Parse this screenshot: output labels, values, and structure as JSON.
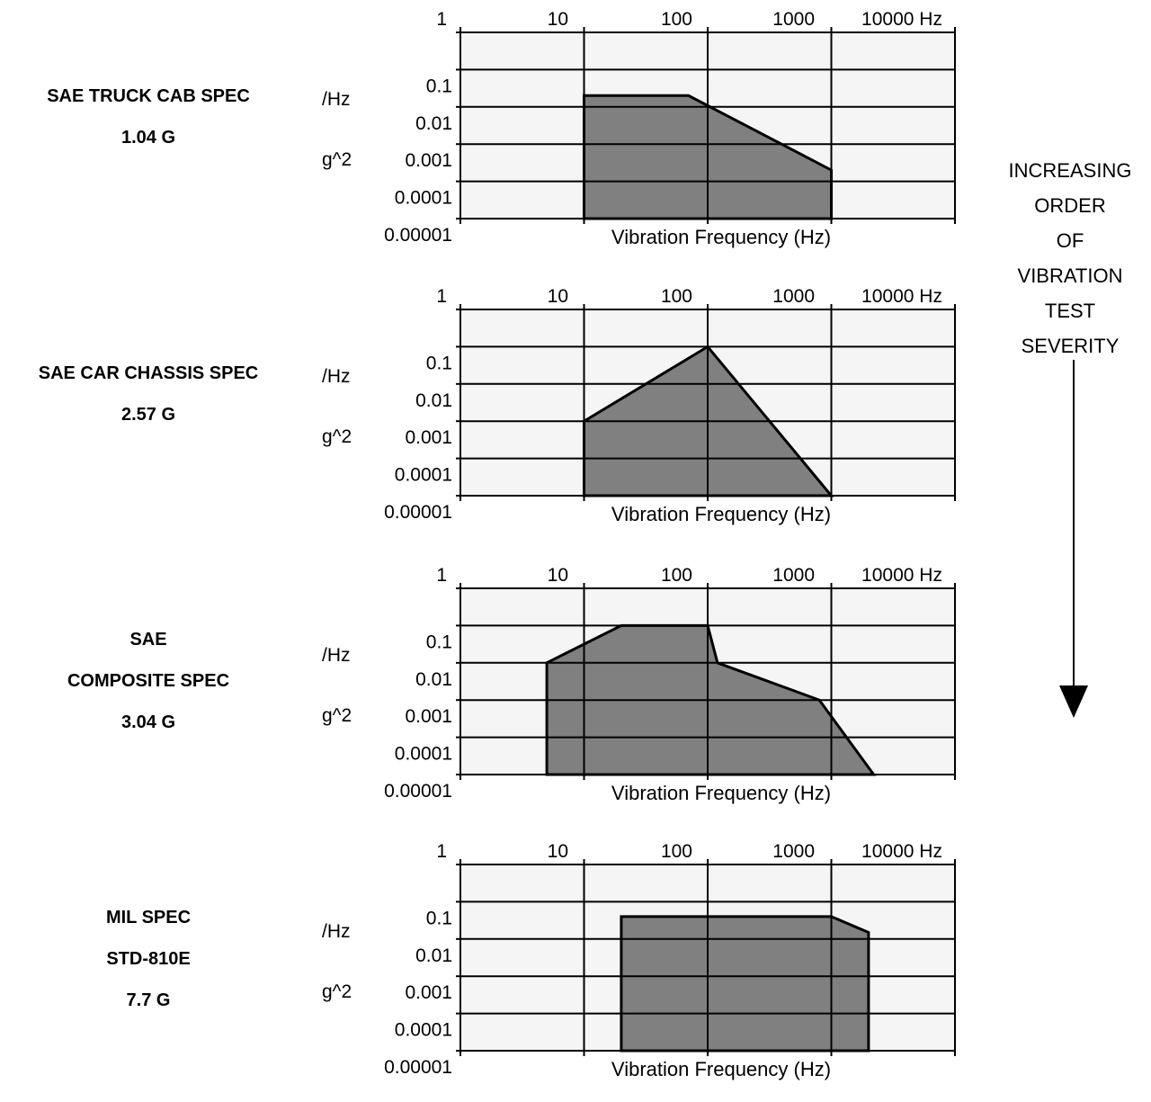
{
  "severity_note": {
    "lines": [
      "INCREASING",
      "ORDER",
      "OF",
      "VIBRATION",
      "TEST",
      "SEVERITY"
    ]
  },
  "chart_data": [
    {
      "type": "area",
      "title_lines": [
        "SAE TRUCK CAB SPEC",
        "1.04 G"
      ],
      "xlabel": "Vibration Frequency (Hz)",
      "ylabel_lines": [
        "/Hz",
        "g^2"
      ],
      "x_scale": "log",
      "y_scale": "log",
      "x_ticks": [
        "1",
        "10",
        "100",
        "1000",
        "10000 Hz"
      ],
      "y_ticks": [
        "0.1",
        "0.01",
        "0.001",
        "0.0001",
        "0.00001"
      ],
      "xlim": [
        1,
        10000
      ],
      "ylim": [
        1e-05,
        1
      ],
      "points": [
        [
          10,
          1e-05
        ],
        [
          10,
          0.02
        ],
        [
          70,
          0.02
        ],
        [
          1000,
          0.0002
        ],
        [
          1000,
          1e-05
        ]
      ]
    },
    {
      "type": "area",
      "title_lines": [
        "SAE CAR CHASSIS SPEC",
        "2.57 G"
      ],
      "xlabel": "Vibration Frequency (Hz)",
      "ylabel_lines": [
        "/Hz",
        "g^2"
      ],
      "x_scale": "log",
      "y_scale": "log",
      "x_ticks": [
        "1",
        "10",
        "100",
        "1000",
        "10000 Hz"
      ],
      "y_ticks": [
        "0.1",
        "0.01",
        "0.001",
        "0.0001",
        "0.00001"
      ],
      "xlim": [
        1,
        10000
      ],
      "ylim": [
        1e-05,
        1
      ],
      "points": [
        [
          10,
          1e-05
        ],
        [
          10,
          0.001
        ],
        [
          100,
          0.1
        ],
        [
          1000,
          1e-05
        ]
      ]
    },
    {
      "type": "area",
      "title_lines": [
        "SAE",
        "COMPOSITE SPEC",
        "3.04 G"
      ],
      "xlabel": "Vibration Frequency (Hz)",
      "ylabel_lines": [
        "/Hz",
        "g^2"
      ],
      "x_scale": "log",
      "y_scale": "log",
      "x_ticks": [
        "1",
        "10",
        "100",
        "1000",
        "10000 Hz"
      ],
      "y_ticks": [
        "0.1",
        "0.01",
        "0.001",
        "0.0001",
        "0.00001"
      ],
      "xlim": [
        1,
        10000
      ],
      "ylim": [
        1e-05,
        1
      ],
      "points": [
        [
          5,
          1e-05
        ],
        [
          5,
          0.01
        ],
        [
          20,
          0.1
        ],
        [
          100,
          0.1
        ],
        [
          120,
          0.01
        ],
        [
          800,
          0.001
        ],
        [
          2200,
          1e-05
        ]
      ]
    },
    {
      "type": "area",
      "title_lines": [
        "MIL SPEC",
        "STD-810E",
        "7.7 G"
      ],
      "xlabel": "Vibration Frequency (Hz)",
      "ylabel_lines": [
        "/Hz",
        "g^2"
      ],
      "x_scale": "log",
      "y_scale": "log",
      "x_ticks": [
        "1",
        "10",
        "100",
        "1000",
        "10000 Hz"
      ],
      "y_ticks": [
        "0.1",
        "0.01",
        "0.001",
        "0.0001",
        "0.00001"
      ],
      "xlim": [
        1,
        10000
      ],
      "ylim": [
        1e-05,
        1
      ],
      "points": [
        [
          20,
          1e-05
        ],
        [
          20,
          0.04
        ],
        [
          1000,
          0.04
        ],
        [
          2000,
          0.015
        ],
        [
          2000,
          1e-05
        ]
      ]
    }
  ]
}
